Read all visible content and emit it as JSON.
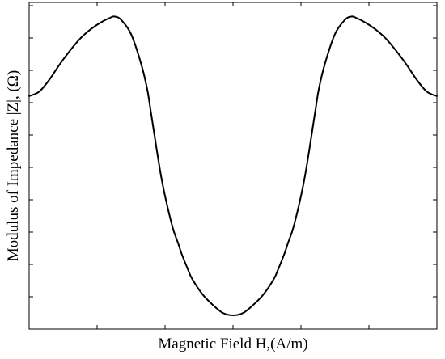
{
  "chart_data": {
    "type": "line",
    "title": "",
    "xlabel": "Magnetic Field H,(A/m)",
    "ylabel": "Modulus of Impedance |Z|, (Ω)",
    "xlim": [
      -1,
      1
    ],
    "ylim": [
      0,
      1
    ],
    "grid": false,
    "x_tick_labels": [],
    "y_tick_labels": [],
    "series": [
      {
        "color": "#000000",
        "x": [
          -1.0,
          -0.95,
          -0.9,
          -0.85,
          -0.8,
          -0.75,
          -0.7,
          -0.65,
          -0.6,
          -0.58,
          -0.55,
          -0.5,
          -0.45,
          -0.42,
          -0.4,
          -0.35,
          -0.3,
          -0.27,
          -0.25,
          -0.22,
          -0.2,
          -0.15,
          -0.1,
          -0.05,
          0.0,
          0.05,
          0.1,
          0.15,
          0.2,
          0.22,
          0.25,
          0.27,
          0.3,
          0.35,
          0.4,
          0.42,
          0.45,
          0.5,
          0.55,
          0.58,
          0.6,
          0.65,
          0.7,
          0.75,
          0.8,
          0.85,
          0.9,
          0.95,
          1.0
        ],
        "y": [
          0.725,
          0.74,
          0.78,
          0.83,
          0.875,
          0.915,
          0.945,
          0.968,
          0.985,
          0.988,
          0.978,
          0.93,
          0.83,
          0.745,
          0.66,
          0.45,
          0.3,
          0.24,
          0.2,
          0.15,
          0.12,
          0.07,
          0.035,
          0.008,
          0.0,
          0.008,
          0.035,
          0.07,
          0.12,
          0.15,
          0.2,
          0.24,
          0.3,
          0.45,
          0.66,
          0.745,
          0.83,
          0.93,
          0.978,
          0.988,
          0.985,
          0.968,
          0.945,
          0.915,
          0.875,
          0.83,
          0.78,
          0.74,
          0.725
        ]
      }
    ]
  }
}
